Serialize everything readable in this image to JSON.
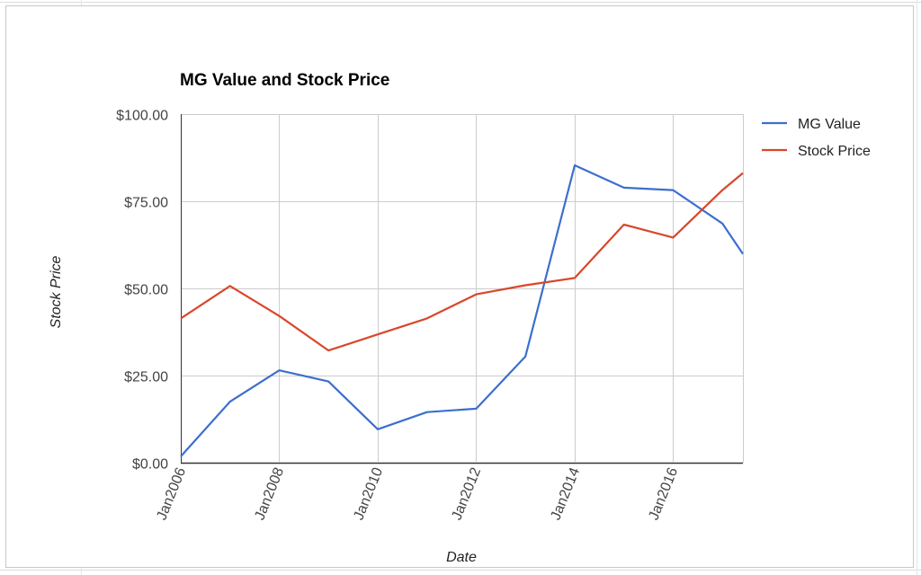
{
  "chart_data": {
    "type": "line",
    "title": "MG Value and Stock Price",
    "xlabel": "Date",
    "ylabel": "Stock Price",
    "x": [
      "2006-01",
      "2007-01",
      "2008-01",
      "2009-01",
      "2010-01",
      "2011-01",
      "2012-01",
      "2013-01",
      "2014-01",
      "2015-01",
      "2016-01",
      "2017-01",
      "2017-06"
    ],
    "x_ticks": [
      "Jan2006",
      "Jan2008",
      "Jan2010",
      "Jan2012",
      "Jan2014",
      "Jan2016"
    ],
    "y_ticks": [
      "$0.00",
      "$25.00",
      "$50.00",
      "$75.00",
      "$100.00"
    ],
    "ylim": [
      0,
      100
    ],
    "grid": true,
    "legend_position": "right",
    "series": [
      {
        "name": "MG Value",
        "color": "#3c6fcd",
        "values": [
          1.8,
          17.5,
          26.5,
          23.3,
          9.6,
          14.5,
          15.5,
          30.5,
          85.3,
          78.9,
          78.2,
          68.6,
          59.9
        ]
      },
      {
        "name": "Stock Price",
        "color": "#d9472b",
        "values": [
          41.4,
          50.7,
          42.1,
          32.2,
          36.8,
          41.4,
          48.3,
          50.9,
          53.0,
          68.3,
          64.6,
          78.2,
          83.1
        ]
      }
    ]
  }
}
